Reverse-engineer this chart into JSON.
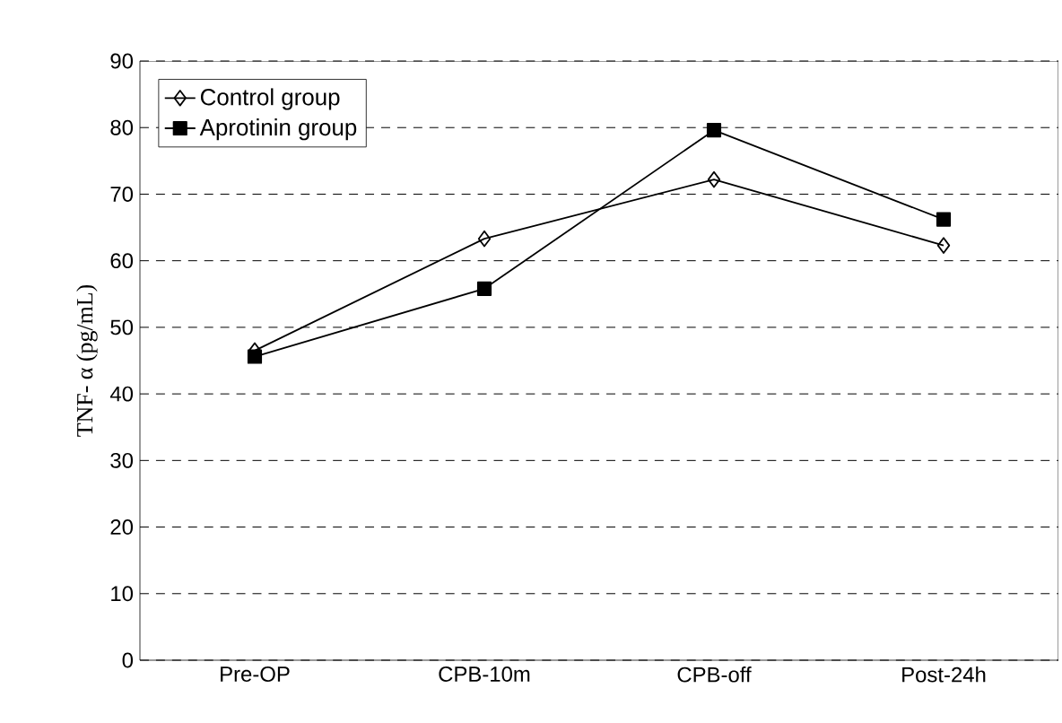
{
  "chart_data": {
    "type": "line",
    "ylabel": "TNF- α (pg/mL)",
    "categories": [
      "Pre-OP",
      "CPB-10m",
      "CPB-off",
      "Post-24h"
    ],
    "series": [
      {
        "name": "Control group",
        "color": "#000000",
        "marker": "diamond",
        "values": [
          46.5,
          63.3,
          72.2,
          62.3
        ]
      },
      {
        "name": "Aprotinin group",
        "color": "#000000",
        "marker": "square",
        "values": [
          45.6,
          55.8,
          79.6,
          66.2
        ]
      }
    ],
    "ylim": [
      0,
      90
    ],
    "yticks": [
      0,
      10,
      20,
      30,
      40,
      50,
      60,
      70,
      80,
      90
    ],
    "grid": "y",
    "legend": "top left",
    "line_style": "solid"
  }
}
